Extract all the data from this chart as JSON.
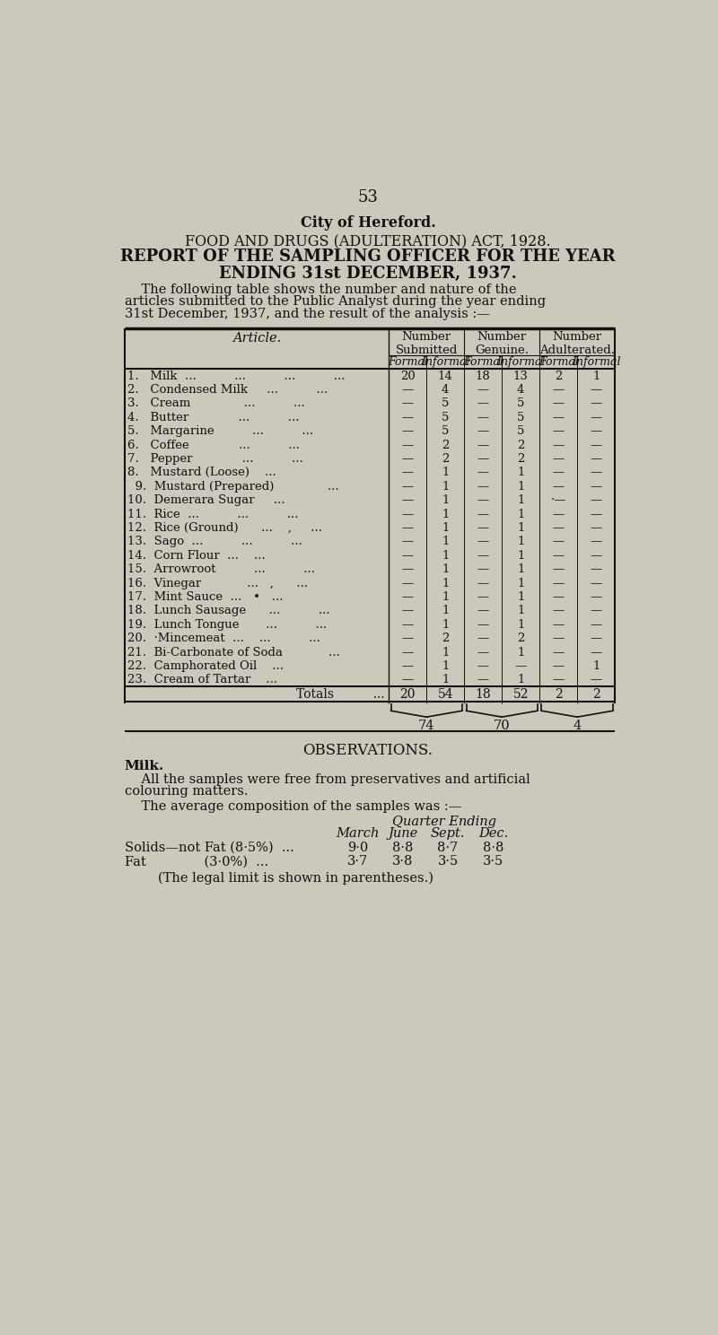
{
  "page_number": "53",
  "city": "City of Hereford.",
  "title1": "FOOD AND DRUGS (ADULTERATION) ACT, 1928.",
  "title2": "REPORT OF THE SAMPLING OFFICER FOR THE YEAR",
  "title3": "ENDING 31st DECEMBER, 1937.",
  "intro_lines": [
    "    The following table shows the number and nature of the",
    "articles submitted to the Public Analyst during the year ending",
    "31st December, 1937, and the result of the analysis :—"
  ],
  "col_headers": [
    "Number\nSubmitted",
    "Number\nGenuine.",
    "Number\nAdulterated."
  ],
  "sub_headers": [
    "Formal",
    "Informal",
    "Formal",
    "Informal",
    "Formal",
    "Informal"
  ],
  "articles": [
    "1.   Milk  ...          ...          ...          ...",
    "2.   Condensed Milk     ...          ...",
    "3.   Cream              ...          ...",
    "4.   Butter             ...          ...",
    "5.   Margarine          ...          ...",
    "6.   Coffee             ...          ...",
    "7.   Pepper             ...          ...",
    "8.   Mustard (Loose)    ...",
    "  9.  Mustard (Prepared)              ...",
    "10.  Demerara Sugar     ...",
    "11.  Rice  ...          ...          ...",
    "12.  Rice (Ground)      ...    ,     ...",
    "13.  Sago  ...          ...          ...",
    "14.  Corn Flour  ...    ...",
    "15.  Arrowroot          ...          ...",
    "16.  Vinegar            ...   ,      ...",
    "17.  Mint Sauce  ...   •   ...",
    "18.  Lunch Sausage      ...          ...",
    "19.  Lunch Tongue       ...          ...",
    "20.  ·Mincemeat  ...    ...          ...",
    "21.  Bi-Carbonate of Soda            ...",
    "22.  Camphorated Oil    ...",
    "23.  Cream of Tartar    ..."
  ],
  "data": [
    [
      "20",
      "14",
      "18",
      "13",
      "2",
      "1"
    ],
    [
      "—",
      "4",
      "—",
      "4",
      "—",
      "—"
    ],
    [
      "—",
      "5",
      "—",
      "5",
      "—",
      "—"
    ],
    [
      "—",
      "5",
      "—",
      "5",
      "—",
      "—"
    ],
    [
      "—",
      "5",
      "—",
      "5",
      "—",
      "—"
    ],
    [
      "—",
      "2",
      "—",
      "2",
      "—",
      "—"
    ],
    [
      "—",
      "2",
      "—",
      "2",
      "—",
      "—"
    ],
    [
      "—",
      "1",
      "—",
      "1",
      "—",
      "—"
    ],
    [
      "—",
      "1",
      "—",
      "1",
      "—",
      "—"
    ],
    [
      "—",
      "1",
      "—",
      "1",
      "·—",
      "—"
    ],
    [
      "—",
      "1",
      "—",
      "1",
      "—",
      "—"
    ],
    [
      "—",
      "1",
      "—",
      "1",
      "—",
      "—"
    ],
    [
      "—",
      "1",
      "—",
      "1",
      "—",
      "—"
    ],
    [
      "—",
      "1",
      "—",
      "1",
      "—",
      "—"
    ],
    [
      "—",
      "1",
      "—",
      "1",
      "—",
      "—"
    ],
    [
      "—",
      "1",
      "—",
      "1",
      "—",
      "—"
    ],
    [
      "—",
      "1",
      "—",
      "1",
      "—",
      "—"
    ],
    [
      "—",
      "1",
      "—",
      "1",
      "—",
      "—"
    ],
    [
      "—",
      "1",
      "—",
      "1",
      "—",
      "—"
    ],
    [
      "—",
      "2",
      "—",
      "2",
      "—",
      "—"
    ],
    [
      "—",
      "1",
      "—",
      "1",
      "—",
      "—"
    ],
    [
      "—",
      "1",
      "—",
      "—",
      "—",
      "1"
    ],
    [
      "—",
      "1",
      "—",
      "1",
      "—",
      "—"
    ]
  ],
  "totals": [
    "20",
    "54",
    "18",
    "52",
    "2",
    "2"
  ],
  "brace_totals": [
    "74",
    "70",
    "4"
  ],
  "observations_title": "OBSERVATIONS.",
  "milk_label": "Milk.",
  "milk_text1a": "    All the samples were free from preservatives and artificial",
  "milk_text1b": "colouring matters.",
  "milk_text2": "    The average composition of the samples was :—",
  "quarter_ending": "Quarter Ending",
  "quarter_cols": [
    "March",
    "June",
    "Sept.",
    "Dec."
  ],
  "solids_label": "Solids—not Fat (8·5%)  ...",
  "solids_values": [
    "9·0",
    "8·8",
    "8·7",
    "8·8"
  ],
  "fat_label": "Fat              (3·0%)  ...",
  "fat_values": [
    "3·7",
    "3·8",
    "3·5",
    "3·5"
  ],
  "legal_note": "        (The legal limit is shown in parentheses.)",
  "bg_color": "#ccc8bc",
  "text_color": "#111111"
}
